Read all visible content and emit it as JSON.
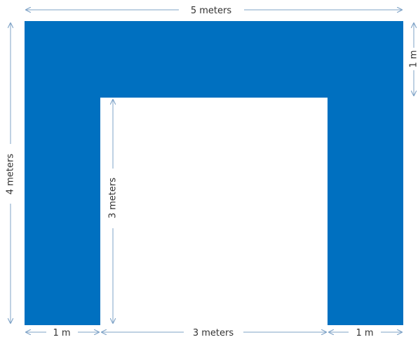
{
  "colors": {
    "shape_fill": "#0070c0",
    "arrow": "#7fa3c7",
    "text": "#333333"
  },
  "labels": {
    "top_width": "5 meters",
    "left_height": "4 meters",
    "right_thickness": "1 m",
    "inner_height": "3 meters",
    "bottom_left": "1 m",
    "bottom_middle": "3 meters",
    "bottom_right": "1 m"
  }
}
